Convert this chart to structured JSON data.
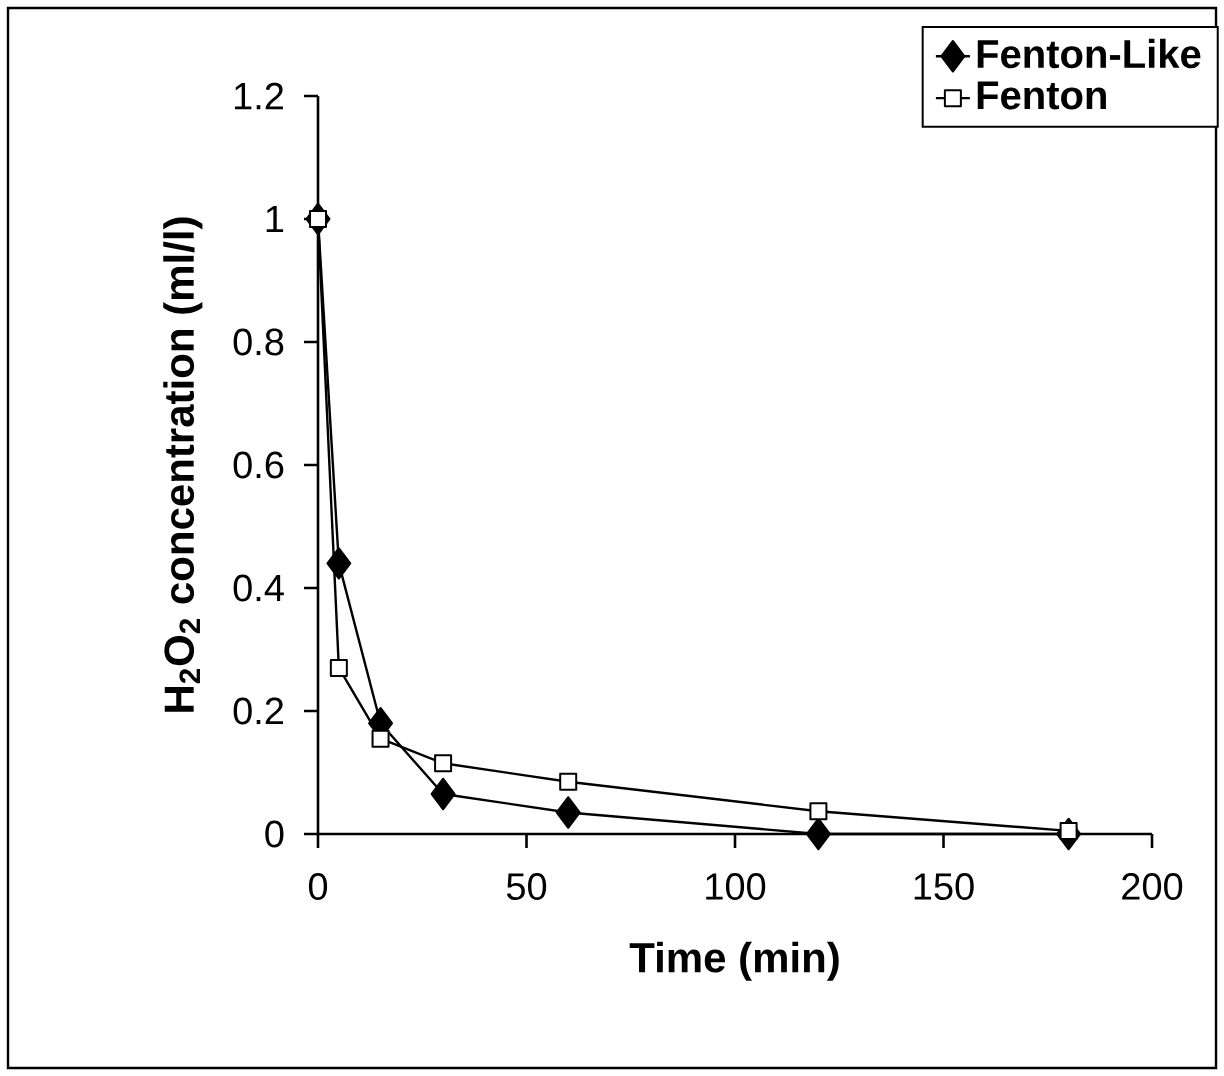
{
  "chart_data": {
    "type": "line",
    "xlabel": "Time (min)",
    "ylabel": "H$_{2}$O$_{2}$ concentration (ml/l)",
    "x": [
      0,
      5,
      15,
      30,
      60,
      120,
      180
    ],
    "series": [
      {
        "name": "Fenton-Like",
        "color": "#000000",
        "marker": "diamond",
        "values": [
          1.0,
          0.44,
          0.18,
          0.065,
          0.035,
          0.0,
          0.0
        ]
      },
      {
        "name": "Fenton",
        "color": "#000000",
        "marker": "square",
        "values": [
          1.0,
          0.27,
          0.155,
          0.115,
          0.085,
          0.037,
          0.005
        ]
      }
    ],
    "xlim": [
      0,
      200
    ],
    "xticks": [
      0,
      50,
      100,
      150,
      200
    ],
    "ylim": [
      0,
      1.2
    ],
    "yticks": [
      0,
      0.2,
      0.4,
      0.6,
      0.8,
      1,
      1.2
    ],
    "legend": "top right",
    "grid": false,
    "line_style": "solid"
  }
}
